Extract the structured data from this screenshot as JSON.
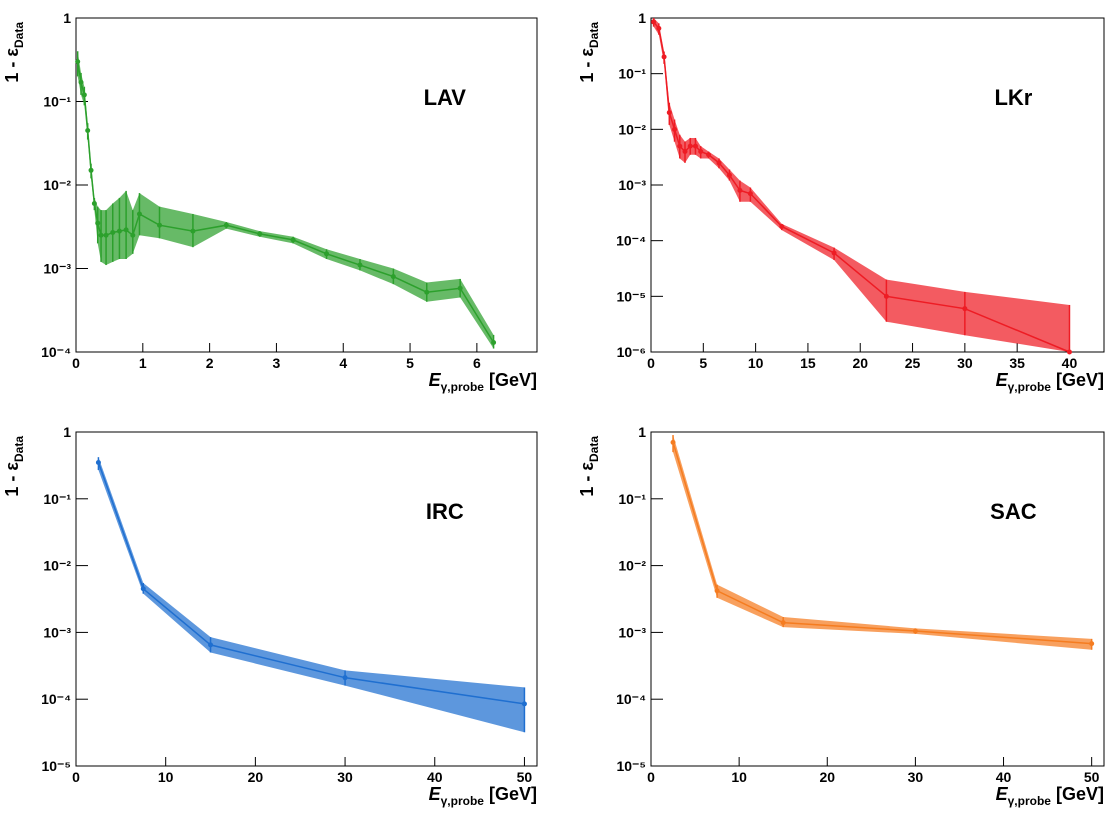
{
  "chart_data": [
    {
      "type": "line",
      "annotation": "LAV",
      "log_y": true,
      "y_label": "1 - ε",
      "y_label_sub": "Data",
      "x_label": "E",
      "x_label_sub": "γ,probe",
      "x_label_unit": "[GeV]",
      "xlim": [
        0,
        6.9
      ],
      "xticks": [
        0,
        1,
        2,
        3,
        4,
        5,
        6
      ],
      "ylim": [
        0.0001,
        1
      ],
      "yticks": [
        {
          "value": 0.0001,
          "label": "10⁻⁴"
        },
        {
          "value": 0.001,
          "label": "10⁻³"
        },
        {
          "value": 0.01,
          "label": "10⁻²"
        },
        {
          "value": 0.1,
          "label": "10⁻¹"
        },
        1
      ],
      "series": [
        {
          "color": "#2ca02c",
          "x": [
            0.025,
            0.075,
            0.125,
            0.175,
            0.225,
            0.275,
            0.325,
            0.375,
            0.45,
            0.55,
            0.65,
            0.75,
            0.85,
            0.95,
            1.25,
            1.75,
            2.25,
            2.75,
            3.25,
            3.75,
            4.25,
            4.75,
            5.25,
            5.75,
            6.25
          ],
          "values": [
            0.3,
            0.17,
            0.12,
            0.045,
            0.015,
            0.006,
            0.0035,
            0.0025,
            0.0025,
            0.0027,
            0.0028,
            0.0029,
            0.0025,
            0.0045,
            0.0033,
            0.0028,
            0.0033,
            0.0026,
            0.0022,
            0.0015,
            0.0011,
            0.0008,
            0.00052,
            0.00058,
            0.00013
          ],
          "lower": [
            0.2,
            0.12,
            0.09,
            0.035,
            0.012,
            0.005,
            0.002,
            0.0012,
            0.0011,
            0.0012,
            0.0013,
            0.0013,
            0.0015,
            0.0025,
            0.0023,
            0.0018,
            0.003,
            0.0024,
            0.002,
            0.0013,
            0.00095,
            0.00065,
            0.0004,
            0.00045,
            0.00011
          ],
          "upper": [
            0.4,
            0.22,
            0.15,
            0.055,
            0.018,
            0.007,
            0.0055,
            0.005,
            0.005,
            0.006,
            0.007,
            0.0085,
            0.005,
            0.008,
            0.0055,
            0.0045,
            0.0036,
            0.0028,
            0.0024,
            0.0017,
            0.0013,
            0.001,
            0.00068,
            0.00075,
            0.00016
          ]
        }
      ]
    },
    {
      "type": "line",
      "annotation": "LKr",
      "log_y": true,
      "y_label": "1 - ε",
      "y_label_sub": "Data",
      "x_label": "E",
      "x_label_sub": "γ,probe",
      "x_label_unit": "[GeV]",
      "xlim": [
        0,
        43.3
      ],
      "xticks": [
        0,
        5,
        10,
        15,
        20,
        25,
        30,
        35,
        40
      ],
      "ylim": [
        1e-06,
        1
      ],
      "yticks": [
        {
          "value": 1e-06,
          "label": "10⁻⁶"
        },
        {
          "value": 1e-05,
          "label": "10⁻⁵"
        },
        {
          "value": 0.0001,
          "label": "10⁻⁴"
        },
        {
          "value": 0.001,
          "label": "10⁻³"
        },
        {
          "value": 0.01,
          "label": "10⁻²"
        },
        {
          "value": 0.1,
          "label": "10⁻¹"
        },
        1
      ],
      "series": [
        {
          "color": "#ee1c24",
          "x": [
            0.25,
            0.75,
            1.25,
            1.75,
            2.25,
            2.75,
            3.25,
            3.75,
            4.25,
            4.75,
            5.5,
            6.5,
            7.5,
            8.5,
            9.5,
            12.5,
            17.5,
            22.5,
            30,
            40
          ],
          "values": [
            0.85,
            0.65,
            0.2,
            0.02,
            0.01,
            0.005,
            0.004,
            0.005,
            0.005,
            0.004,
            0.0035,
            0.0025,
            0.0015,
            0.0008,
            0.0007,
            0.00018,
            6e-05,
            1e-05,
            6e-06,
            1e-06
          ],
          "lower": [
            0.7,
            0.5,
            0.15,
            0.012,
            0.006,
            0.003,
            0.0025,
            0.0035,
            0.0035,
            0.003,
            0.003,
            0.002,
            0.0012,
            0.0005,
            0.0005,
            0.000155,
            4.5e-05,
            3.5e-06,
            2e-06,
            1e-06
          ],
          "upper": [
            1,
            0.8,
            0.25,
            0.03,
            0.015,
            0.008,
            0.006,
            0.007,
            0.007,
            0.005,
            0.004,
            0.003,
            0.0019,
            0.0012,
            0.0009,
            0.0002,
            7.5e-05,
            2e-05,
            1.2e-05,
            7e-06
          ]
        }
      ]
    },
    {
      "type": "line",
      "annotation": "IRC",
      "log_y": true,
      "y_label": "1 - ε",
      "y_label_sub": "Data",
      "x_label": "E",
      "x_label_sub": "γ,probe",
      "x_label_unit": "[GeV]",
      "xlim": [
        0,
        51.4
      ],
      "xticks": [
        0,
        10,
        20,
        30,
        40,
        50
      ],
      "ylim": [
        1e-05,
        1
      ],
      "yticks": [
        {
          "value": 1e-05,
          "label": "10⁻⁵"
        },
        {
          "value": 0.0001,
          "label": "10⁻⁴"
        },
        {
          "value": 0.001,
          "label": "10⁻³"
        },
        {
          "value": 0.01,
          "label": "10⁻²"
        },
        {
          "value": 0.1,
          "label": "10⁻¹"
        },
        1
      ],
      "series": [
        {
          "color": "#1f6fd0",
          "x": [
            2.5,
            7.5,
            15,
            30,
            50
          ],
          "values": [
            0.35,
            0.0045,
            0.00065,
            0.00021,
            8.5e-05
          ],
          "lower": [
            0.27,
            0.0038,
            0.0005,
            0.00016,
            3.2e-05
          ],
          "upper": [
            0.42,
            0.0055,
            0.00085,
            0.00027,
            0.00015
          ]
        }
      ]
    },
    {
      "type": "line",
      "annotation": "SAC",
      "log_y": true,
      "y_label": "1 - ε",
      "y_label_sub": "Data",
      "x_label": "E",
      "x_label_sub": "γ,probe",
      "x_label_unit": "[GeV]",
      "xlim": [
        0,
        51.4
      ],
      "xticks": [
        0,
        10,
        20,
        30,
        40,
        50
      ],
      "ylim": [
        1e-05,
        1
      ],
      "yticks": [
        {
          "value": 1e-05,
          "label": "10⁻⁵"
        },
        {
          "value": 0.0001,
          "label": "10⁻⁴"
        },
        {
          "value": 0.001,
          "label": "10⁻³"
        },
        {
          "value": 0.01,
          "label": "10⁻²"
        },
        {
          "value": 0.1,
          "label": "10⁻¹"
        },
        1
      ],
      "series": [
        {
          "color": "#f57c20",
          "x": [
            2.5,
            7.5,
            15,
            30,
            50
          ],
          "values": [
            0.7,
            0.0042,
            0.0014,
            0.00105,
            0.00068
          ],
          "lower": [
            0.5,
            0.0033,
            0.0012,
            0.00095,
            0.00055
          ],
          "upper": [
            0.9,
            0.0052,
            0.0017,
            0.00115,
            0.0008
          ]
        }
      ]
    }
  ]
}
